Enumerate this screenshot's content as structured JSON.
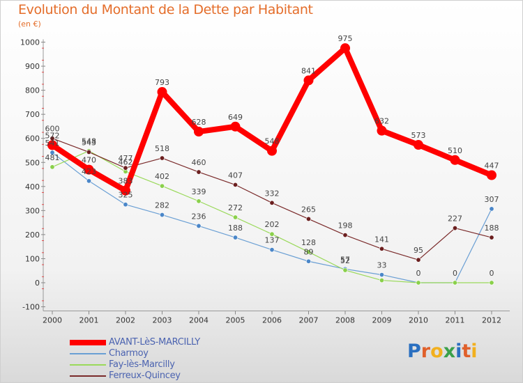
{
  "title": "Evolution du Montant de la Dette par Habitant",
  "subtitle": "(en €)",
  "logo": {
    "text": "Proxiti",
    "colors": [
      "#2a6fc0",
      "#e0602b",
      "#f2b01e",
      "#3aa04a",
      "#2a6fc0",
      "#e0602b",
      "#f2b01e"
    ]
  },
  "chart_data": {
    "type": "line",
    "title": "Evolution du Montant de la Dette par Habitant",
    "ylabel": "(en €)",
    "xlabel": "",
    "categories": [
      "2000",
      "2001",
      "2002",
      "2003",
      "2004",
      "2005",
      "2006",
      "2007",
      "2008",
      "2009",
      "2010",
      "2011",
      "2012"
    ],
    "ylim": [
      -100,
      1000
    ],
    "yticks": [
      -100,
      0,
      100,
      200,
      300,
      400,
      500,
      600,
      700,
      800,
      900,
      1000
    ],
    "grid": false,
    "legend": "bottom-left",
    "series": [
      {
        "name": "AVANT-LèS-MARCILLY",
        "color": "#ff0000",
        "marker": "#ff0000",
        "width": 8,
        "radius": 7,
        "values": [
          572,
          470,
          383,
          793,
          628,
          649,
          548,
          841,
          975,
          632,
          573,
          510,
          447
        ],
        "labels": [
          "572",
          "470",
          "383",
          "793",
          "628",
          "649",
          "548",
          "841",
          "975",
          "632",
          "573",
          "510",
          "447"
        ]
      },
      {
        "name": "Charmoy",
        "color": "#6a9fd4",
        "marker": "#4a86c8",
        "width": 1.2,
        "radius": 3.2,
        "values": [
          541,
          423,
          325,
          282,
          236,
          188,
          137,
          89,
          57,
          33,
          0,
          0,
          307
        ],
        "labels": [
          "541",
          "423",
          "325",
          "282",
          "236",
          "188",
          "137",
          "89",
          "57",
          "33",
          "0",
          "0",
          "307"
        ]
      },
      {
        "name": "Fay-lès-Marcilly",
        "color": "#9ad95a",
        "marker": "#8ad04b",
        "width": 1.2,
        "radius": 3.2,
        "values": [
          481,
          548,
          462,
          402,
          339,
          272,
          202,
          128,
          52,
          10,
          0,
          0,
          0
        ],
        "labels": [
          "481",
          "548",
          "462",
          "402",
          "339",
          "272",
          "202",
          "128",
          "52",
          "",
          "",
          "",
          "0"
        ]
      },
      {
        "name": "Ferreux-Quincey",
        "color": "#7a2a2a",
        "marker": "#6b1f1f",
        "width": 1.2,
        "radius": 3.2,
        "values": [
          600,
          543,
          477,
          518,
          460,
          407,
          332,
          265,
          198,
          141,
          95,
          227,
          188
        ],
        "labels": [
          "600",
          "543",
          "477",
          "518",
          "460",
          "407",
          "332",
          "265",
          "198",
          "141",
          "95",
          "227",
          "188"
        ]
      }
    ]
  }
}
